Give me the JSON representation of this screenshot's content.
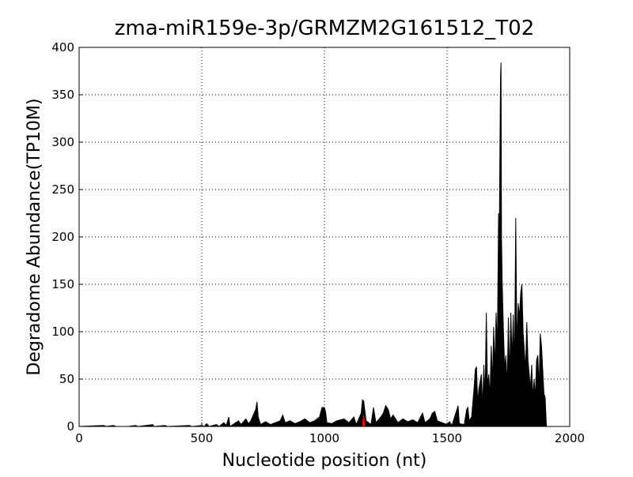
{
  "chart_data": {
    "type": "area",
    "title": "zma-miR159e-3p/GRMZM2G161512_T02",
    "xlabel": "Nucleotide position (nt)",
    "ylabel": "Degradome Abundance(TP10M)",
    "xlim": [
      0,
      2000
    ],
    "xticks": [
      0,
      500,
      1000,
      1500,
      2000
    ],
    "ylim": [
      0,
      400
    ],
    "yticks": [
      0,
      50,
      100,
      150,
      200,
      250,
      300,
      350,
      400
    ],
    "grid": true,
    "series": [
      {
        "color": "#000000",
        "x": [
          0,
          100,
          110,
          140,
          150,
          200,
          230,
          240,
          300,
          305,
          350,
          360,
          450,
          460,
          500,
          510,
          520,
          530,
          560,
          570,
          590,
          600,
          610,
          615,
          650,
          660,
          680,
          690,
          700,
          710,
          720,
          725,
          730,
          740,
          760,
          780,
          800,
          820,
          830,
          840,
          860,
          880,
          900,
          920,
          940,
          960,
          980,
          990,
          1000,
          1005,
          1010,
          1030,
          1050,
          1080,
          1100,
          1120,
          1130,
          1150,
          1155,
          1160,
          1170,
          1190,
          1200,
          1210,
          1230,
          1240,
          1250,
          1260,
          1270,
          1280,
          1300,
          1320,
          1340,
          1360,
          1380,
          1400,
          1410,
          1430,
          1440,
          1450,
          1460,
          1480,
          1500,
          1510,
          1520,
          1545,
          1550,
          1570,
          1580,
          1585,
          1590,
          1600,
          1610,
          1615,
          1620,
          1625,
          1630,
          1640,
          1645,
          1650,
          1655,
          1660,
          1665,
          1670,
          1675,
          1680,
          1685,
          1690,
          1695,
          1700,
          1705,
          1710,
          1712,
          1715,
          1718,
          1720,
          1722,
          1725,
          1730,
          1735,
          1740,
          1745,
          1750,
          1755,
          1760,
          1765,
          1770,
          1775,
          1780,
          1785,
          1790,
          1795,
          1800,
          1805,
          1810,
          1815,
          1820,
          1825,
          1830,
          1835,
          1840,
          1845,
          1850,
          1855,
          1860,
          1865,
          1870,
          1875,
          1880,
          1885,
          1890,
          1895,
          1900,
          1905,
          1910,
          2000
        ],
        "values": [
          0,
          1,
          0,
          1,
          0,
          0,
          1,
          0,
          2,
          0,
          1,
          0,
          1,
          0,
          1,
          0,
          3,
          0,
          2,
          0,
          4,
          1,
          10,
          0,
          6,
          2,
          8,
          3,
          6,
          12,
          18,
          26,
          10,
          2,
          5,
          2,
          4,
          6,
          12,
          4,
          6,
          3,
          5,
          8,
          4,
          6,
          10,
          20,
          20,
          15,
          4,
          3,
          6,
          8,
          4,
          10,
          2,
          14,
          28,
          27,
          6,
          2,
          20,
          4,
          10,
          14,
          22,
          18,
          8,
          12,
          4,
          8,
          5,
          7,
          4,
          14,
          4,
          8,
          14,
          16,
          6,
          4,
          2,
          5,
          1,
          22,
          3,
          2,
          18,
          20,
          6,
          10,
          40,
          60,
          63,
          25,
          40,
          55,
          20,
          65,
          30,
          120,
          40,
          55,
          30,
          85,
          45,
          105,
          60,
          120,
          80,
          225,
          150,
          275,
          370,
          384,
          200,
          150,
          100,
          60,
          75,
          40,
          115,
          50,
          120,
          70,
          118,
          60,
          220,
          80,
          130,
          115,
          140,
          150,
          100,
          80,
          60,
          110,
          70,
          55,
          40,
          65,
          30,
          50,
          30,
          70,
          75,
          40,
          98,
          85,
          60,
          35,
          30,
          0,
          0,
          0
        ]
      },
      {
        "color": "#ff0000",
        "x": [
          1155,
          1160,
          1165
        ],
        "values": [
          0,
          12,
          0
        ]
      }
    ]
  }
}
